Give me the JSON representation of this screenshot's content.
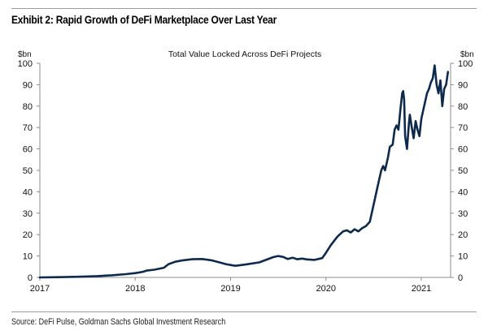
{
  "header": {
    "title": "Exhibit 2: Rapid Growth of DeFi Marketplace Over Last Year"
  },
  "footer": {
    "source": "Source: DeFi Pulse, Goldman Sachs Global Investment Research"
  },
  "chart_data": {
    "type": "line",
    "title": "Total Value Locked Across DeFi Projects",
    "xlabel": "",
    "ylabel": "$bn",
    "y2label": "$bn",
    "xlim": [
      2017.0,
      2021.3
    ],
    "ylim": [
      0,
      100
    ],
    "yticks": [
      0,
      10,
      20,
      30,
      40,
      50,
      60,
      70,
      80,
      90,
      100
    ],
    "xticks": [
      2017,
      2018,
      2019,
      2020,
      2021
    ],
    "xtick_labels": [
      "2017",
      "2018",
      "2019",
      "2020",
      "2021"
    ],
    "grid": false,
    "legend": "none",
    "line_color": "#0d2a4d",
    "series": [
      {
        "name": "Total Value Locked",
        "x": [
          2017.0,
          2017.2,
          2017.4,
          2017.6,
          2017.75,
          2017.9,
          2018.0,
          2018.08,
          2018.12,
          2018.2,
          2018.3,
          2018.35,
          2018.42,
          2018.5,
          2018.6,
          2018.7,
          2018.8,
          2018.9,
          2018.95,
          2019.0,
          2019.05,
          2019.15,
          2019.3,
          2019.45,
          2019.5,
          2019.55,
          2019.6,
          2019.65,
          2019.7,
          2019.75,
          2019.8,
          2019.88,
          2019.92,
          2019.96,
          2020.0,
          2020.05,
          2020.12,
          2020.18,
          2020.22,
          2020.26,
          2020.3,
          2020.34,
          2020.38,
          2020.42,
          2020.46,
          2020.5,
          2020.52,
          2020.55,
          2020.58,
          2020.6,
          2020.62,
          2020.65,
          2020.67,
          2020.7,
          2020.72,
          2020.74,
          2020.76,
          2020.78,
          2020.8,
          2020.81,
          2020.82,
          2020.83,
          2020.85,
          2020.87,
          2020.88,
          2020.9,
          2020.92,
          2020.94,
          2020.96,
          2020.98,
          2021.0,
          2021.02,
          2021.04,
          2021.06,
          2021.08,
          2021.1,
          2021.12,
          2021.14,
          2021.16,
          2021.18,
          2021.2,
          2021.22,
          2021.24,
          2021.26,
          2021.28
        ],
        "y": [
          0.0,
          0.1,
          0.3,
          0.6,
          1.0,
          1.5,
          2.0,
          2.6,
          3.2,
          3.6,
          4.5,
          6.2,
          7.3,
          8.0,
          8.5,
          8.6,
          8.0,
          6.8,
          6.2,
          5.8,
          5.4,
          6.0,
          7.0,
          9.5,
          10.0,
          9.6,
          8.6,
          9.2,
          8.5,
          8.8,
          8.4,
          8.2,
          8.6,
          9.0,
          11.5,
          15.0,
          19.0,
          21.5,
          22.0,
          21.0,
          22.5,
          21.5,
          23.0,
          24.0,
          26.0,
          34.0,
          38.0,
          44.0,
          50.0,
          52.0,
          50.0,
          56.0,
          61.0,
          62.0,
          69.0,
          71.0,
          69.0,
          78.0,
          86.0,
          87.0,
          83.0,
          66.0,
          60.0,
          72.0,
          76.0,
          70.0,
          65.0,
          73.0,
          69.0,
          66.0,
          74.0,
          78.0,
          82.0,
          86.0,
          88.0,
          91.0,
          93.0,
          99.0,
          90.0,
          86.0,
          92.0,
          80.0,
          88.0,
          90.0,
          96.0
        ]
      }
    ]
  }
}
